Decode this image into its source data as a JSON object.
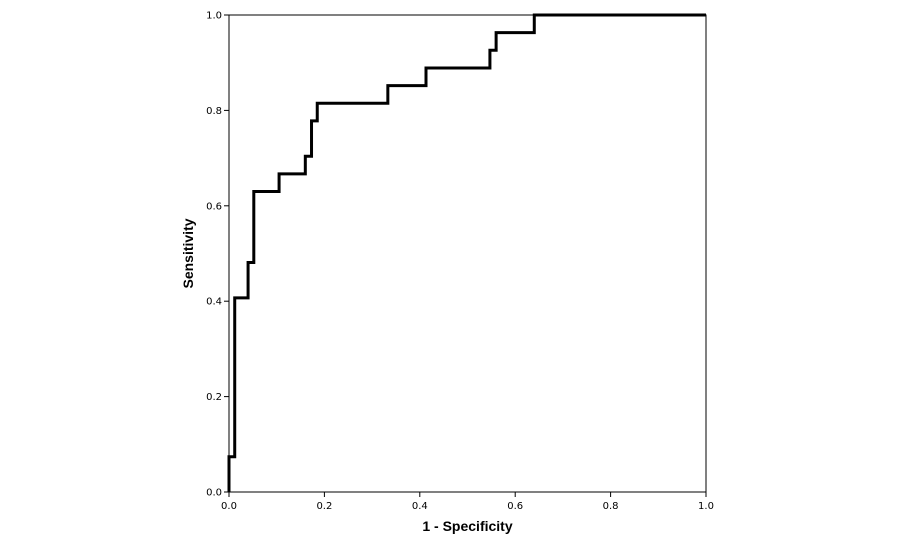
{
  "chart_data": {
    "type": "line",
    "title": "",
    "xlabel": "1 - Specificity",
    "ylabel": "Sensitivity",
    "xlim": [
      0.0,
      1.0
    ],
    "ylim": [
      0.0,
      1.0
    ],
    "x_ticks": [
      "0.0",
      "0.2",
      "0.4",
      "0.6",
      "0.8",
      "1.0"
    ],
    "y_ticks": [
      "0.0",
      "0.2",
      "0.4",
      "0.6",
      "0.8",
      "1.0"
    ],
    "grid": false,
    "legend": "none",
    "line_color": "#000000",
    "series": [
      {
        "x": [
          0.0,
          0.0,
          0.012,
          0.012,
          0.04,
          0.04,
          0.052,
          0.052,
          0.105,
          0.105,
          0.16,
          0.16,
          0.173,
          0.173,
          0.185,
          0.185,
          0.333,
          0.333,
          0.413,
          0.413,
          0.547,
          0.547,
          0.56,
          0.56,
          0.64,
          0.64,
          1.0
        ],
        "y": [
          0.0,
          0.074,
          0.074,
          0.407,
          0.407,
          0.481,
          0.481,
          0.63,
          0.63,
          0.667,
          0.667,
          0.704,
          0.704,
          0.778,
          0.778,
          0.815,
          0.815,
          0.852,
          0.852,
          0.889,
          0.889,
          0.926,
          0.926,
          0.963,
          0.963,
          1.0,
          1.0
        ]
      }
    ]
  }
}
